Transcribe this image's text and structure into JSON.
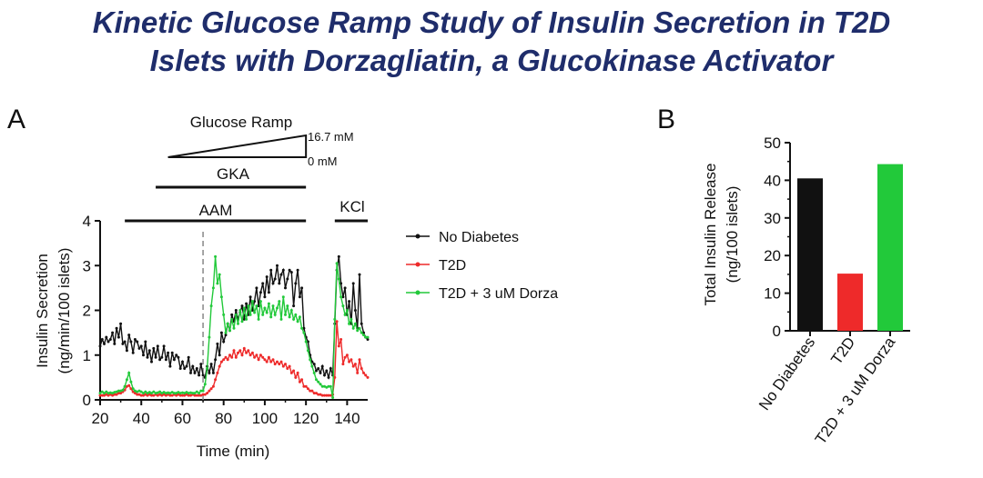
{
  "title": {
    "line1": "Kinetic Glucose Ramp Study of Insulin Secretion in T2D",
    "line2": "Islets with Dorzagliatin, a Glucokinase Activator"
  },
  "colors": {
    "title": "#1f2d6b",
    "no_diabetes": "#111111",
    "t2d": "#ee2a2a",
    "t2d_dorza": "#22c93a"
  },
  "chart_data": [
    {
      "panel_label": "A",
      "type": "line",
      "xlabel": "Time (min)",
      "ylabel_line1": "Insulin Secretion",
      "ylabel_line2": "(ng/min/100 islets)",
      "xlim": [
        20,
        150
      ],
      "ylim": [
        0,
        4
      ],
      "x_ticks": [
        20,
        40,
        60,
        80,
        100,
        120,
        140
      ],
      "y_ticks": [
        0,
        1,
        2,
        3,
        4
      ],
      "legend": [
        "No Diabetes",
        "T2D",
        "T2D + 3 uM Dorza"
      ],
      "legend_position": "right",
      "vertical_marker_x": 70,
      "annotations": {
        "glucose_ramp": {
          "label": "Glucose Ramp",
          "x_start": 53,
          "x_end": 120,
          "high_label": "16.7 mM",
          "low_label": "0 mM"
        },
        "gka": {
          "label": "GKA",
          "x_start": 47,
          "x_end": 120
        },
        "aam": {
          "label": "AAM",
          "x_start": 32,
          "x_end": 120
        },
        "kcl": {
          "label": "KCl",
          "x_start": 134,
          "x_end": 150
        }
      },
      "x": [
        20,
        21,
        22,
        23,
        24,
        25,
        26,
        27,
        28,
        29,
        30,
        31,
        32,
        33,
        34,
        35,
        36,
        37,
        38,
        39,
        40,
        41,
        42,
        43,
        44,
        45,
        46,
        47,
        48,
        49,
        50,
        51,
        52,
        53,
        54,
        55,
        56,
        57,
        58,
        59,
        60,
        61,
        62,
        63,
        64,
        65,
        66,
        67,
        68,
        69,
        70,
        71,
        72,
        73,
        74,
        75,
        76,
        77,
        78,
        79,
        80,
        81,
        82,
        83,
        84,
        85,
        86,
        87,
        88,
        89,
        90,
        91,
        92,
        93,
        94,
        95,
        96,
        97,
        98,
        99,
        100,
        101,
        102,
        103,
        104,
        105,
        106,
        107,
        108,
        109,
        110,
        111,
        112,
        113,
        114,
        115,
        116,
        117,
        118,
        119,
        120,
        121,
        122,
        123,
        124,
        125,
        126,
        127,
        128,
        129,
        130,
        131,
        132,
        133,
        134,
        135,
        136,
        137,
        138,
        139,
        140,
        141,
        142,
        143,
        144,
        145,
        146,
        147,
        148,
        149,
        150
      ],
      "series": [
        {
          "name": "No Diabetes",
          "values": [
            1.2,
            1.35,
            1.25,
            1.4,
            1.3,
            1.35,
            1.5,
            1.25,
            1.6,
            1.4,
            1.7,
            1.25,
            1.3,
            1.1,
            1.45,
            1.3,
            1.05,
            1.35,
            1.3,
            1.15,
            1.2,
            1.0,
            1.3,
            0.95,
            1.1,
            0.85,
            1.15,
            0.95,
            1.2,
            0.9,
            0.95,
            1.2,
            0.9,
            1.05,
            0.75,
            1.05,
            0.9,
            1.0,
            0.95,
            0.7,
            0.85,
            0.7,
            0.75,
            0.95,
            0.6,
            0.75,
            0.6,
            0.7,
            0.55,
            0.8,
            0.55,
            0.5,
            0.75,
            0.6,
            0.8,
            0.6,
            0.9,
            1.25,
            1.0,
            1.5,
            1.3,
            1.45,
            1.7,
            1.55,
            1.9,
            1.75,
            2.0,
            1.8,
            1.95,
            2.1,
            1.8,
            2.15,
            1.9,
            2.3,
            2.0,
            2.2,
            2.5,
            2.1,
            2.4,
            2.6,
            2.3,
            2.75,
            2.4,
            2.9,
            2.6,
            2.7,
            3.0,
            2.6,
            2.8,
            2.9,
            2.5,
            2.7,
            2.9,
            2.85,
            2.1,
            2.6,
            2.9,
            2.3,
            2.5,
            1.6,
            1.4,
            1.3,
            1.0,
            0.85,
            0.8,
            0.65,
            0.7,
            0.6,
            0.75,
            0.55,
            0.65,
            0.5,
            0.7,
            0.55,
            1.7,
            2.9,
            3.2,
            2.6,
            2.3,
            2.5,
            1.9,
            2.2,
            1.7,
            2.6,
            2.0,
            1.6,
            2.8,
            1.7,
            1.5,
            1.4,
            1.35
          ],
          "color": "#111111"
        },
        {
          "name": "T2D",
          "values": [
            0.1,
            0.1,
            0.1,
            0.12,
            0.1,
            0.12,
            0.1,
            0.12,
            0.12,
            0.15,
            0.15,
            0.18,
            0.22,
            0.3,
            0.32,
            0.25,
            0.18,
            0.15,
            0.12,
            0.12,
            0.1,
            0.1,
            0.12,
            0.1,
            0.12,
            0.1,
            0.1,
            0.12,
            0.1,
            0.12,
            0.1,
            0.12,
            0.1,
            0.12,
            0.1,
            0.1,
            0.12,
            0.1,
            0.12,
            0.1,
            0.1,
            0.1,
            0.12,
            0.1,
            0.1,
            0.12,
            0.1,
            0.1,
            0.1,
            0.1,
            0.12,
            0.12,
            0.15,
            0.2,
            0.25,
            0.3,
            0.45,
            0.6,
            0.75,
            0.85,
            0.9,
            0.95,
            0.9,
            1.0,
            0.95,
            1.1,
            0.95,
            1.05,
            1.1,
            1.0,
            1.15,
            1.05,
            1.1,
            1.0,
            1.05,
            0.95,
            1.0,
            0.9,
            1.0,
            0.95,
            0.9,
            0.85,
            0.95,
            0.85,
            0.9,
            0.8,
            0.85,
            0.8,
            0.85,
            0.75,
            0.8,
            0.7,
            0.75,
            0.6,
            0.65,
            0.5,
            0.6,
            0.4,
            0.45,
            0.3,
            0.3,
            0.25,
            0.2,
            0.2,
            0.15,
            0.15,
            0.12,
            0.12,
            0.1,
            0.1,
            0.1,
            0.1,
            0.1,
            0.12,
            0.5,
            1.75,
            1.2,
            1.35,
            0.8,
            0.95,
            1.0,
            0.85,
            0.9,
            0.75,
            0.8,
            0.6,
            0.9,
            0.7,
            0.6,
            0.55,
            0.5
          ],
          "color": "#ee2a2a"
        },
        {
          "name": "T2D + 3 uM Dorza",
          "values": [
            0.15,
            0.18,
            0.15,
            0.18,
            0.15,
            0.16,
            0.15,
            0.17,
            0.18,
            0.2,
            0.2,
            0.22,
            0.3,
            0.45,
            0.6,
            0.4,
            0.25,
            0.2,
            0.18,
            0.2,
            0.18,
            0.15,
            0.18,
            0.15,
            0.17,
            0.15,
            0.18,
            0.15,
            0.16,
            0.18,
            0.15,
            0.17,
            0.15,
            0.16,
            0.15,
            0.17,
            0.15,
            0.15,
            0.17,
            0.15,
            0.16,
            0.15,
            0.17,
            0.15,
            0.16,
            0.15,
            0.15,
            0.18,
            0.15,
            0.2,
            0.2,
            0.35,
            0.7,
            1.4,
            2.1,
            2.5,
            3.2,
            2.6,
            2.8,
            2.3,
            1.9,
            1.5,
            1.7,
            1.55,
            1.8,
            1.6,
            1.9,
            1.7,
            2.0,
            1.75,
            2.05,
            1.8,
            2.1,
            1.9,
            2.2,
            1.95,
            2.1,
            1.8,
            2.2,
            1.9,
            2.05,
            1.95,
            2.15,
            1.85,
            2.1,
            1.9,
            2.05,
            2.2,
            1.8,
            2.3,
            1.9,
            2.1,
            1.85,
            2.0,
            1.8,
            1.9,
            1.75,
            1.85,
            1.6,
            1.5,
            1.3,
            1.1,
            0.9,
            0.75,
            0.6,
            0.45,
            0.4,
            0.35,
            0.3,
            0.3,
            0.28,
            0.3,
            0.3,
            0.05,
            1.8,
            3.05,
            2.7,
            2.3,
            2.1,
            1.9,
            2.0,
            1.7,
            1.8,
            1.6,
            1.7,
            1.55,
            1.6,
            1.5,
            1.45,
            1.4,
            1.4
          ],
          "color": "#22c93a"
        }
      ]
    },
    {
      "panel_label": "B",
      "type": "bar",
      "ylabel_line1": "Total Insulin Release",
      "ylabel_line2": "(ng/100 islets)",
      "categories": [
        "No Diabetes",
        "T2D",
        "T2D + 3 uM Dorza"
      ],
      "values": [
        40.5,
        15.2,
        44.3
      ],
      "colors": [
        "#111111",
        "#ee2a2a",
        "#22c93a"
      ],
      "ylim": [
        0,
        50
      ],
      "y_ticks": [
        0,
        10,
        20,
        30,
        40,
        50
      ]
    }
  ]
}
